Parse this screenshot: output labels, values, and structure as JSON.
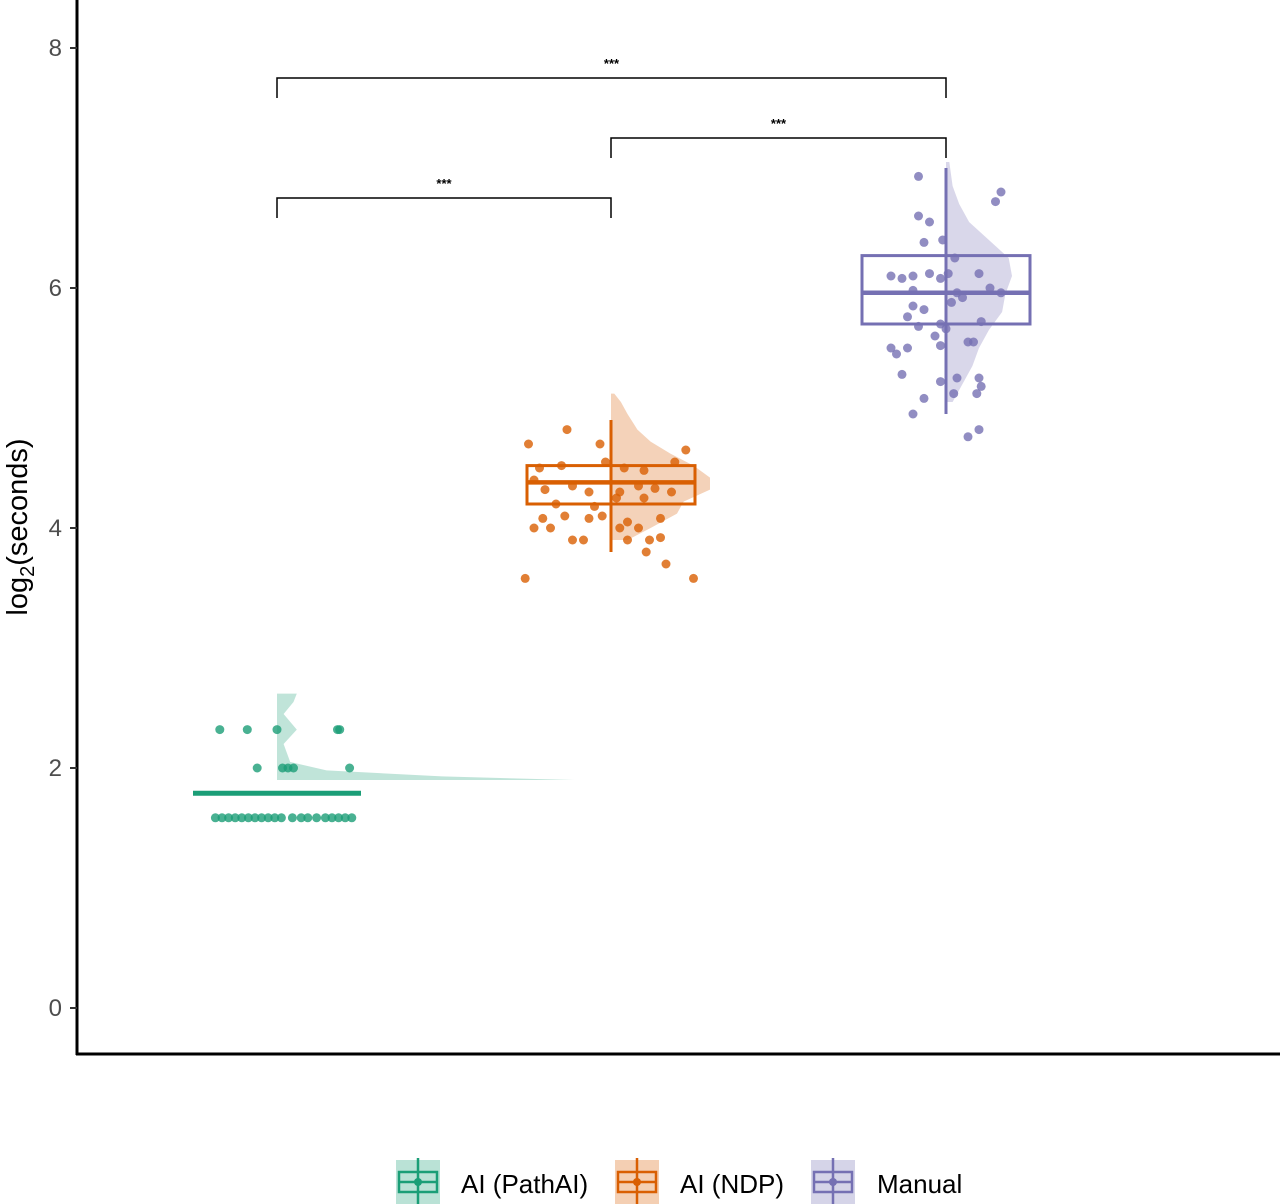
{
  "chart_data": {
    "type": "raincloud",
    "ylabel": "log2(seconds)",
    "xlabel": "",
    "ylim": [
      -0.4,
      8.4
    ],
    "yticks": [
      0,
      2,
      4,
      6,
      8
    ],
    "grid": false,
    "legend_position": "bottom",
    "groups": [
      {
        "name": "AI (PathAI)",
        "color": "#1b9e77",
        "box": {
          "min": 1.585,
          "q1": 1.585,
          "median": 1.585,
          "q3": 1.585,
          "max": 1.585
        },
        "summary_bar": 1.79,
        "points": [
          {
            "dx": -0.52,
            "y": 2.32
          },
          {
            "dx": -0.27,
            "y": 2.32
          },
          {
            "dx": 0.0,
            "y": 2.32
          },
          {
            "dx": 0.55,
            "y": 2.32
          },
          {
            "dx": 0.57,
            "y": 2.32
          },
          {
            "dx": -0.18,
            "y": 2.0
          },
          {
            "dx": 0.05,
            "y": 2.0
          },
          {
            "dx": 0.1,
            "y": 2.0
          },
          {
            "dx": 0.15,
            "y": 2.0
          },
          {
            "dx": 0.66,
            "y": 2.0
          },
          {
            "dx": -0.56,
            "y": 1.585
          },
          {
            "dx": -0.5,
            "y": 1.585
          },
          {
            "dx": -0.44,
            "y": 1.585
          },
          {
            "dx": -0.38,
            "y": 1.585
          },
          {
            "dx": -0.32,
            "y": 1.585
          },
          {
            "dx": -0.26,
            "y": 1.585
          },
          {
            "dx": -0.2,
            "y": 1.585
          },
          {
            "dx": -0.14,
            "y": 1.585
          },
          {
            "dx": -0.08,
            "y": 1.585
          },
          {
            "dx": -0.02,
            "y": 1.585
          },
          {
            "dx": 0.04,
            "y": 1.585
          },
          {
            "dx": 0.14,
            "y": 1.585
          },
          {
            "dx": 0.22,
            "y": 1.585
          },
          {
            "dx": 0.28,
            "y": 1.585
          },
          {
            "dx": 0.36,
            "y": 1.585
          },
          {
            "dx": 0.44,
            "y": 1.585
          },
          {
            "dx": 0.5,
            "y": 1.585
          },
          {
            "dx": 0.56,
            "y": 1.585
          },
          {
            "dx": 0.62,
            "y": 1.585
          },
          {
            "dx": 0.68,
            "y": 1.585
          }
        ],
        "density": [
          {
            "y": 1.9,
            "w": 0.9
          },
          {
            "y": 1.93,
            "w": 0.5
          },
          {
            "y": 1.98,
            "w": 0.15
          },
          {
            "y": 2.05,
            "w": 0.04
          },
          {
            "y": 2.2,
            "w": 0.02
          },
          {
            "y": 2.32,
            "w": 0.06
          },
          {
            "y": 2.45,
            "w": 0.02
          },
          {
            "y": 2.55,
            "w": 0.05
          },
          {
            "y": 2.62,
            "w": 0.06
          }
        ]
      },
      {
        "name": "AI (NDP)",
        "color": "#d95f02",
        "box": {
          "min": 3.8,
          "q1": 4.2,
          "median": 4.38,
          "q3": 4.52,
          "max": 4.9
        },
        "points": [
          {
            "dx": -0.75,
            "y": 4.7
          },
          {
            "dx": -0.4,
            "y": 4.82
          },
          {
            "dx": -0.1,
            "y": 4.7
          },
          {
            "dx": 0.68,
            "y": 4.65
          },
          {
            "dx": -0.65,
            "y": 4.5
          },
          {
            "dx": -0.45,
            "y": 4.52
          },
          {
            "dx": -0.05,
            "y": 4.55
          },
          {
            "dx": 0.12,
            "y": 4.5
          },
          {
            "dx": 0.3,
            "y": 4.48
          },
          {
            "dx": 0.58,
            "y": 4.55
          },
          {
            "dx": -0.7,
            "y": 4.4
          },
          {
            "dx": -0.6,
            "y": 4.32
          },
          {
            "dx": -0.35,
            "y": 4.35
          },
          {
            "dx": -0.2,
            "y": 4.3
          },
          {
            "dx": 0.08,
            "y": 4.3
          },
          {
            "dx": 0.25,
            "y": 4.35
          },
          {
            "dx": 0.4,
            "y": 4.33
          },
          {
            "dx": 0.55,
            "y": 4.3
          },
          {
            "dx": -0.5,
            "y": 4.2
          },
          {
            "dx": -0.15,
            "y": 4.18
          },
          {
            "dx": 0.05,
            "y": 4.25
          },
          {
            "dx": 0.3,
            "y": 4.25
          },
          {
            "dx": -0.62,
            "y": 4.08
          },
          {
            "dx": -0.42,
            "y": 4.1
          },
          {
            "dx": -0.2,
            "y": 4.08
          },
          {
            "dx": -0.08,
            "y": 4.1
          },
          {
            "dx": 0.15,
            "y": 4.05
          },
          {
            "dx": 0.45,
            "y": 4.08
          },
          {
            "dx": -0.7,
            "y": 4.0
          },
          {
            "dx": -0.55,
            "y": 4.0
          },
          {
            "dx": 0.08,
            "y": 4.0
          },
          {
            "dx": 0.25,
            "y": 4.0
          },
          {
            "dx": 0.35,
            "y": 3.9
          },
          {
            "dx": -0.35,
            "y": 3.9
          },
          {
            "dx": -0.25,
            "y": 3.9
          },
          {
            "dx": 0.15,
            "y": 3.9
          },
          {
            "dx": 0.45,
            "y": 3.92
          },
          {
            "dx": 0.32,
            "y": 3.8
          },
          {
            "dx": 0.5,
            "y": 3.7
          },
          {
            "dx": -0.78,
            "y": 3.58
          },
          {
            "dx": 0.75,
            "y": 3.58
          }
        ],
        "density": [
          {
            "y": 3.9,
            "w": 0.05
          },
          {
            "y": 4.0,
            "w": 0.12
          },
          {
            "y": 4.12,
            "w": 0.2
          },
          {
            "y": 4.22,
            "w": 0.22
          },
          {
            "y": 4.32,
            "w": 0.3
          },
          {
            "y": 4.42,
            "w": 0.3
          },
          {
            "y": 4.52,
            "w": 0.25
          },
          {
            "y": 4.62,
            "w": 0.18
          },
          {
            "y": 4.72,
            "w": 0.12
          },
          {
            "y": 4.82,
            "w": 0.08
          },
          {
            "y": 4.95,
            "w": 0.05
          },
          {
            "y": 5.05,
            "w": 0.03
          },
          {
            "y": 5.12,
            "w": 0.01
          }
        ]
      },
      {
        "name": "Manual",
        "color": "#7570b3",
        "box": {
          "min": 4.95,
          "q1": 5.7,
          "median": 5.96,
          "q3": 6.27,
          "max": 7.0
        },
        "points": [
          {
            "dx": -0.25,
            "y": 6.93
          },
          {
            "dx": 0.45,
            "y": 6.72
          },
          {
            "dx": 0.5,
            "y": 6.8
          },
          {
            "dx": -0.25,
            "y": 6.6
          },
          {
            "dx": -0.15,
            "y": 6.55
          },
          {
            "dx": -0.2,
            "y": 6.38
          },
          {
            "dx": -0.03,
            "y": 6.4
          },
          {
            "dx": 0.08,
            "y": 6.25
          },
          {
            "dx": -0.5,
            "y": 6.1
          },
          {
            "dx": -0.4,
            "y": 6.08
          },
          {
            "dx": -0.3,
            "y": 6.1
          },
          {
            "dx": -0.15,
            "y": 6.12
          },
          {
            "dx": -0.05,
            "y": 6.08
          },
          {
            "dx": 0.02,
            "y": 6.12
          },
          {
            "dx": 0.3,
            "y": 6.12
          },
          {
            "dx": 0.4,
            "y": 6.0
          },
          {
            "dx": 0.5,
            "y": 5.96
          },
          {
            "dx": -0.3,
            "y": 5.98
          },
          {
            "dx": 0.1,
            "y": 5.96
          },
          {
            "dx": 0.15,
            "y": 5.92
          },
          {
            "dx": -0.3,
            "y": 5.85
          },
          {
            "dx": -0.2,
            "y": 5.82
          },
          {
            "dx": 0.05,
            "y": 5.88
          },
          {
            "dx": -0.35,
            "y": 5.76
          },
          {
            "dx": -0.25,
            "y": 5.68
          },
          {
            "dx": -0.05,
            "y": 5.7
          },
          {
            "dx": 0.0,
            "y": 5.66
          },
          {
            "dx": 0.32,
            "y": 5.72
          },
          {
            "dx": -0.1,
            "y": 5.6
          },
          {
            "dx": -0.5,
            "y": 5.5
          },
          {
            "dx": -0.45,
            "y": 5.45
          },
          {
            "dx": -0.35,
            "y": 5.5
          },
          {
            "dx": -0.05,
            "y": 5.52
          },
          {
            "dx": 0.2,
            "y": 5.55
          },
          {
            "dx": 0.25,
            "y": 5.55
          },
          {
            "dx": -0.4,
            "y": 5.28
          },
          {
            "dx": 0.1,
            "y": 5.25
          },
          {
            "dx": 0.3,
            "y": 5.25
          },
          {
            "dx": 0.32,
            "y": 5.18
          },
          {
            "dx": -0.05,
            "y": 5.22
          },
          {
            "dx": 0.07,
            "y": 5.12
          },
          {
            "dx": 0.28,
            "y": 5.12
          },
          {
            "dx": -0.2,
            "y": 5.08
          },
          {
            "dx": -0.3,
            "y": 4.95
          },
          {
            "dx": 0.2,
            "y": 4.76
          },
          {
            "dx": 0.3,
            "y": 4.82
          }
        ],
        "density": [
          {
            "y": 5.05,
            "w": 0.02
          },
          {
            "y": 5.2,
            "w": 0.05
          },
          {
            "y": 5.35,
            "w": 0.08
          },
          {
            "y": 5.5,
            "w": 0.1
          },
          {
            "y": 5.65,
            "w": 0.13
          },
          {
            "y": 5.8,
            "w": 0.17
          },
          {
            "y": 5.95,
            "w": 0.18
          },
          {
            "y": 6.1,
            "w": 0.2
          },
          {
            "y": 6.25,
            "w": 0.19
          },
          {
            "y": 6.4,
            "w": 0.13
          },
          {
            "y": 6.55,
            "w": 0.07
          },
          {
            "y": 6.7,
            "w": 0.04
          },
          {
            "y": 6.85,
            "w": 0.02
          },
          {
            "y": 7.05,
            "w": 0.01
          }
        ]
      }
    ],
    "comparisons": [
      {
        "from": 0,
        "to": 1,
        "label": "***",
        "y": 6.75
      },
      {
        "from": 1,
        "to": 2,
        "label": "***",
        "y": 7.25
      },
      {
        "from": 0,
        "to": 2,
        "label": "***",
        "y": 7.75
      }
    ]
  }
}
